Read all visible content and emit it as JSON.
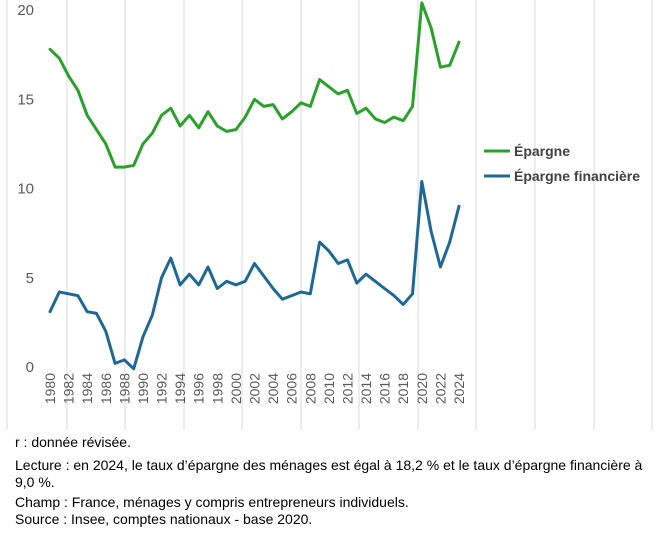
{
  "chart_data": {
    "type": "line",
    "title": "",
    "xlabel": "",
    "ylabel": "",
    "ylim": [
      0,
      20
    ],
    "yticks": [
      0,
      5,
      10,
      15,
      20
    ],
    "x": [
      1980,
      1981,
      1982,
      1983,
      1984,
      1985,
      1986,
      1987,
      1988,
      1989,
      1990,
      1991,
      1992,
      1993,
      1994,
      1995,
      1996,
      1997,
      1998,
      1999,
      2000,
      2001,
      2002,
      2003,
      2004,
      2005,
      2006,
      2007,
      2008,
      2009,
      2010,
      2011,
      2012,
      2013,
      2014,
      2015,
      2016,
      2017,
      2018,
      2019,
      2020,
      2021,
      2022,
      2023,
      2024
    ],
    "xtick_labels": [
      "1980",
      "1982",
      "1984",
      "1986",
      "1988",
      "1990",
      "1992",
      "1994",
      "1996",
      "1998",
      "2000",
      "2002",
      "2004",
      "2006",
      "2008",
      "2010",
      "2012",
      "2014",
      "2016",
      "2018",
      "2020",
      "2022",
      "2024"
    ],
    "grid": "vertical lines only",
    "legend_position": "right",
    "series": [
      {
        "name": "Épargne",
        "color": "#2ca02c",
        "values": [
          17.8,
          17.3,
          16.3,
          15.5,
          14.1,
          13.3,
          12.5,
          11.2,
          11.2,
          11.3,
          12.5,
          13.1,
          14.1,
          14.5,
          13.5,
          14.1,
          13.4,
          14.3,
          13.5,
          13.2,
          13.3,
          14.0,
          15.0,
          14.6,
          14.7,
          13.9,
          14.3,
          14.8,
          14.6,
          16.1,
          15.7,
          15.3,
          15.5,
          14.2,
          14.5,
          13.9,
          13.7,
          14.0,
          13.8,
          14.6,
          20.4,
          19.0,
          16.8,
          16.9,
          18.2
        ]
      },
      {
        "name": "Épargne financière",
        "color": "#1f6896",
        "values": [
          3.1,
          4.2,
          4.1,
          4.0,
          3.1,
          3.0,
          2.0,
          0.2,
          0.4,
          -0.1,
          1.7,
          2.9,
          5.0,
          6.1,
          4.6,
          5.2,
          4.6,
          5.6,
          4.4,
          4.8,
          4.6,
          4.8,
          5.8,
          5.1,
          4.4,
          3.8,
          4.0,
          4.2,
          4.1,
          7.0,
          6.5,
          5.8,
          6.0,
          4.7,
          5.2,
          4.8,
          4.4,
          4.0,
          3.5,
          4.1,
          10.4,
          7.6,
          5.6,
          7.0,
          9.0
        ]
      }
    ]
  },
  "notes": {
    "revised": "r : donnée révisée.",
    "reading": "Lecture : en 2024, le taux d’épargne des ménages est égal à 18,2 % et le taux d’épargne financière à 9,0 %.",
    "scope": "Champ : France, ménages y compris entrepreneurs individuels.",
    "source": "Source : Insee, comptes nationaux - base 2020."
  }
}
